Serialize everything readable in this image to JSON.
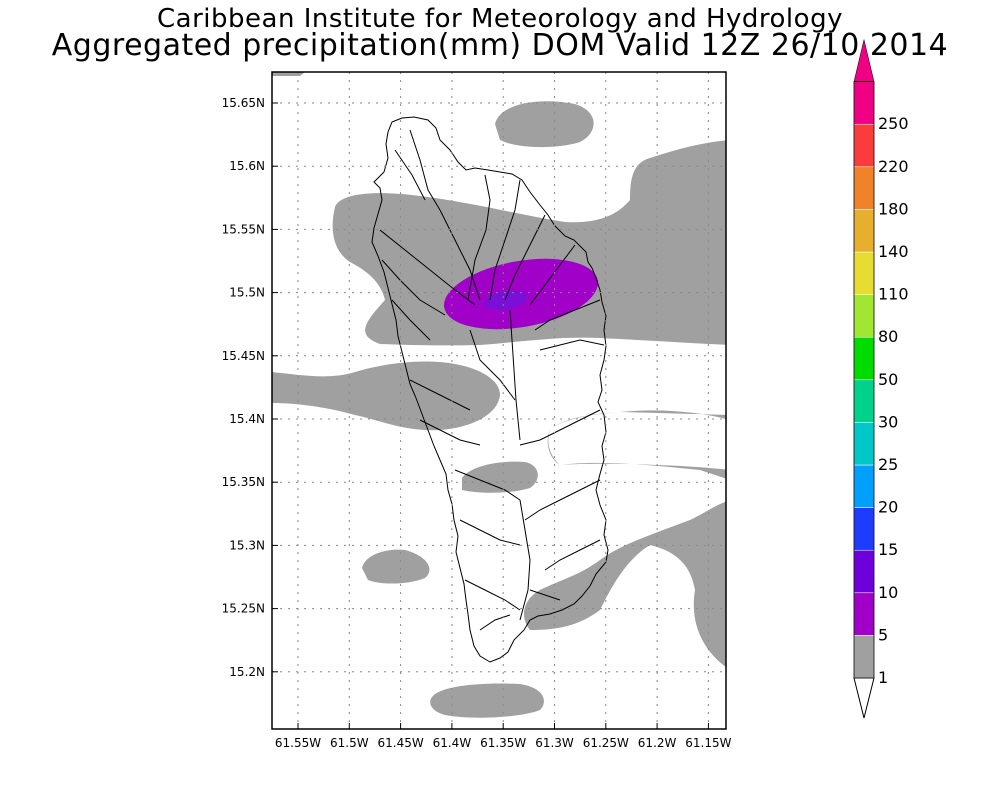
{
  "header": {
    "title_line1": "Caribbean Institute for Meteorology and Hydrology",
    "title_line2": "Aggregated precipitation(mm) DOM Valid 12Z 26/10 2014"
  },
  "map": {
    "region": "Dominica",
    "lat_labels": [
      "15.65N",
      "15.6N",
      "15.55N",
      "15.5N",
      "15.45N",
      "15.4N",
      "15.35N",
      "15.3N",
      "15.25N",
      "15.2N"
    ],
    "lon_labels": [
      "61.55W",
      "61.5W",
      "61.45W",
      "61.4W",
      "61.35W",
      "61.3W",
      "61.25W",
      "61.2W",
      "61.15W"
    ],
    "grid": true
  },
  "colorbar": {
    "labels": [
      "1",
      "5",
      "10",
      "15",
      "20",
      "25",
      "30",
      "50",
      "80",
      "110",
      "140",
      "180",
      "220",
      "250"
    ],
    "colors": [
      "#a0a0a0",
      "#a000c8",
      "#6e00dc",
      "#1e3cff",
      "#00a0ff",
      "#00c8c8",
      "#00d28c",
      "#00dc00",
      "#a0e632",
      "#e6dc32",
      "#e6af2d",
      "#f08228",
      "#fa3c3c",
      "#f00082"
    ],
    "below_color": "#ffffff",
    "above_color": "#f00082"
  }
}
